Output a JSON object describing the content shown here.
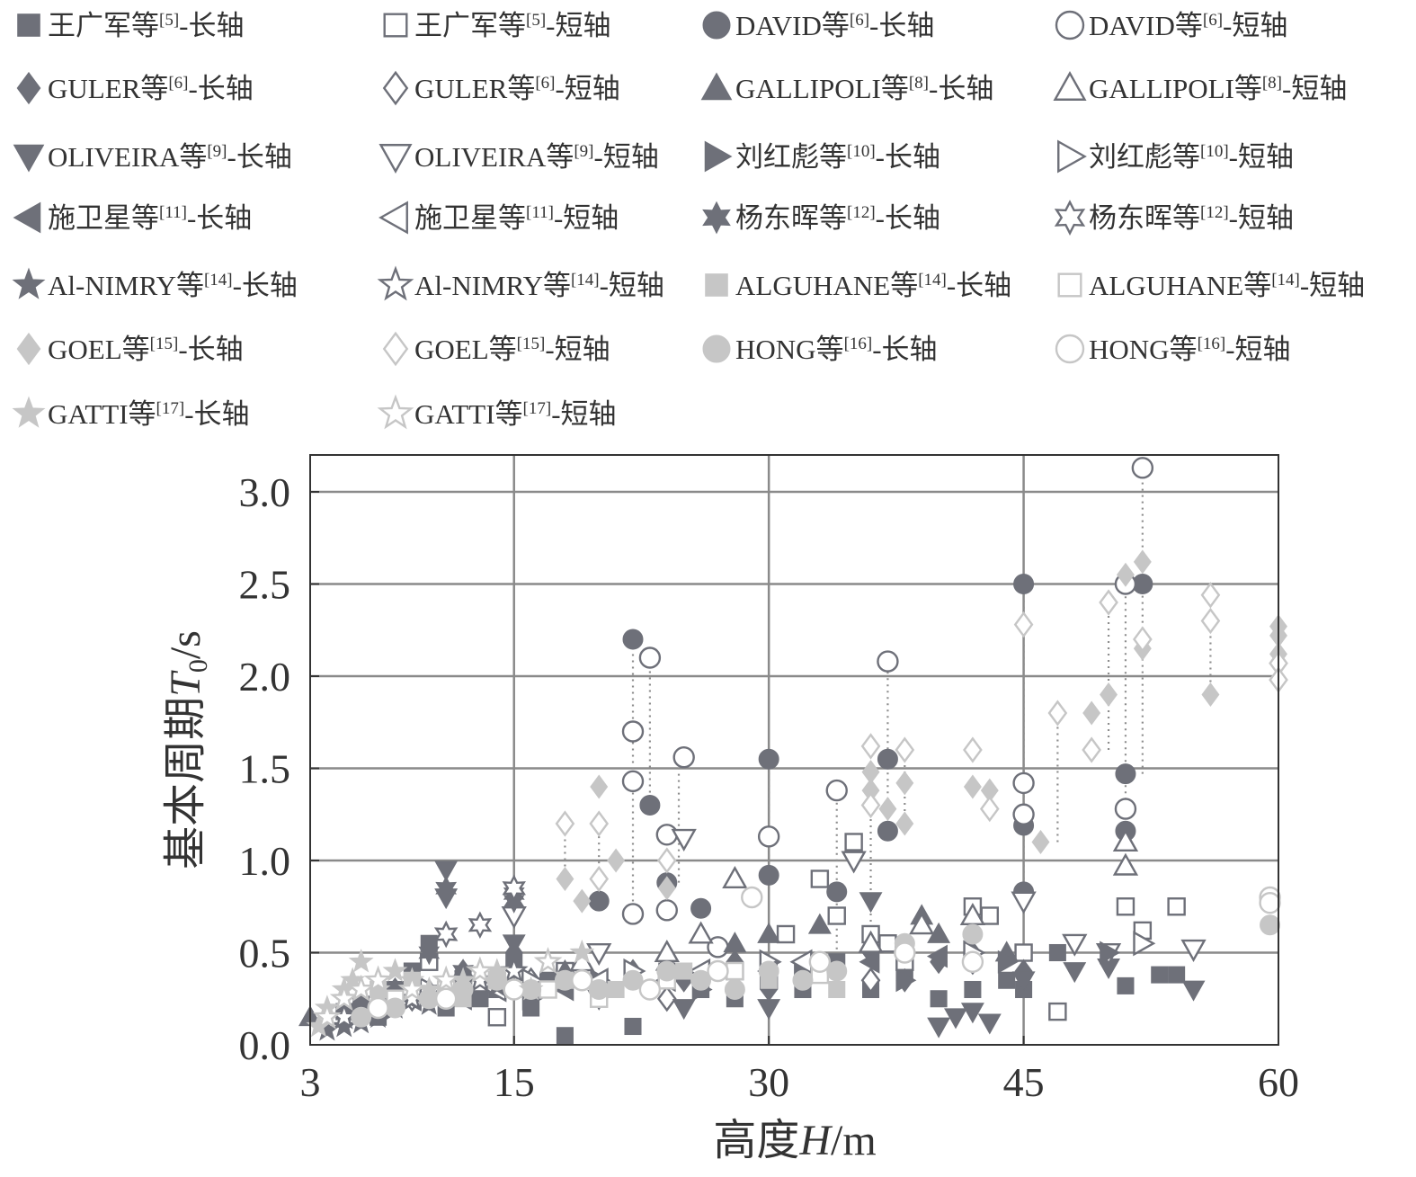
{
  "chart_data": {
    "type": "scatter",
    "xlabel": "高度H/m",
    "ylabel": "基本周期T0/s",
    "xlim": [
      3,
      60
    ],
    "ylim": [
      0,
      3.2
    ],
    "xticks": [
      "3",
      "15",
      "30",
      "45",
      "60"
    ],
    "xtick_values": [
      3,
      15,
      30,
      45,
      60
    ],
    "yticks": [
      "0.0",
      "0.5",
      "1.0",
      "1.5",
      "2.0",
      "2.5",
      "3.0"
    ],
    "ytick_values": [
      0,
      0.5,
      1.0,
      1.5,
      2.0,
      2.5,
      3.0
    ],
    "grid": true,
    "legend_position": "top",
    "colors": {
      "dark": "#6e7079",
      "light": "#c6c6c6",
      "axis": "#333333",
      "grid": "#8a8a8a"
    },
    "series": [
      {
        "name": "王广军等[5]-长轴",
        "marker": "square",
        "fill": true,
        "shade": "dark",
        "x": [
          5,
          6,
          7,
          8,
          9,
          10,
          11,
          12,
          13,
          14,
          15,
          16,
          17,
          18,
          20,
          22,
          24,
          26,
          28,
          30,
          32,
          34,
          36,
          38,
          40,
          42,
          44,
          45,
          47,
          51,
          53,
          54
        ],
        "y": [
          0.18,
          0.22,
          0.15,
          0.3,
          0.4,
          0.55,
          0.2,
          0.35,
          0.25,
          0.3,
          0.45,
          0.2,
          0.35,
          0.05,
          0.3,
          0.1,
          0.4,
          0.3,
          0.25,
          0.35,
          0.3,
          0.45,
          0.3,
          0.4,
          0.25,
          0.3,
          0.35,
          0.3,
          0.5,
          0.32,
          0.38,
          0.38
        ]
      },
      {
        "name": "王广军等[5]-短轴",
        "marker": "square",
        "fill": false,
        "shade": "dark",
        "x": [
          10,
          12,
          14,
          18,
          20,
          24,
          28,
          30,
          31,
          33,
          34,
          35,
          36,
          37,
          38,
          42,
          43,
          45,
          47,
          51,
          52,
          54
        ],
        "y": [
          0.45,
          0.3,
          0.15,
          0.4,
          0.3,
          0.35,
          0.4,
          0.35,
          0.6,
          0.9,
          0.7,
          1.1,
          0.6,
          0.55,
          0.45,
          0.75,
          0.7,
          0.5,
          0.18,
          0.75,
          0.62,
          0.75
        ]
      },
      {
        "name": "DAVID等[6]-长轴",
        "marker": "circle",
        "fill": true,
        "shade": "dark",
        "x": [
          20,
          22,
          23,
          24,
          26,
          30,
          30,
          34,
          37,
          37,
          45,
          45,
          45,
          51,
          51,
          52
        ],
        "y": [
          0.78,
          2.2,
          1.3,
          0.88,
          0.74,
          1.55,
          0.92,
          0.83,
          1.55,
          1.16,
          2.5,
          1.19,
          0.83,
          1.16,
          1.47,
          2.5
        ]
      },
      {
        "name": "DAVID等[6]-短轴",
        "marker": "circle",
        "fill": false,
        "shade": "dark",
        "x": [
          22,
          22,
          22,
          23,
          24,
          24,
          25,
          27,
          30,
          34,
          37,
          45,
          45,
          51,
          51,
          52
        ],
        "y": [
          1.7,
          1.43,
          0.71,
          2.1,
          1.14,
          0.73,
          1.56,
          0.53,
          1.13,
          1.38,
          2.08,
          1.42,
          1.25,
          1.28,
          2.5,
          3.13
        ]
      },
      {
        "name": "GULER等[6]-长轴",
        "marker": "diamond",
        "fill": true,
        "shade": "dark",
        "x": [
          8,
          10,
          12,
          15,
          18,
          20,
          22,
          25,
          28,
          30,
          34,
          36,
          38,
          40,
          42,
          45
        ],
        "y": [
          0.3,
          0.25,
          0.4,
          0.5,
          0.35,
          0.3,
          0.4,
          0.35,
          0.45,
          0.3,
          0.4,
          0.5,
          0.35,
          0.45,
          0.5,
          0.4
        ]
      },
      {
        "name": "GULER等[6]-短轴",
        "marker": "diamond",
        "fill": false,
        "shade": "dark",
        "x": [
          9,
          12,
          16,
          20,
          24,
          30,
          36,
          42
        ],
        "y": [
          0.25,
          0.3,
          0.35,
          0.3,
          0.25,
          0.4,
          0.35,
          0.45
        ]
      },
      {
        "name": "GALLIPOLI等[8]-长轴",
        "marker": "triangle-up",
        "fill": true,
        "shade": "dark",
        "x": [
          3,
          6,
          10,
          14,
          18,
          24,
          28,
          30,
          33,
          36,
          39,
          40,
          44
        ],
        "y": [
          0.15,
          0.25,
          0.3,
          0.35,
          0.4,
          0.45,
          0.55,
          0.6,
          0.65,
          0.55,
          0.7,
          0.6,
          0.5
        ]
      },
      {
        "name": "GALLIPOLI等[8]-短轴",
        "marker": "triangle-up",
        "fill": false,
        "shade": "dark",
        "x": [
          19,
          24,
          26,
          28,
          36,
          39,
          42,
          51,
          51
        ],
        "y": [
          0.45,
          0.5,
          0.6,
          0.9,
          0.55,
          0.65,
          0.7,
          1.1,
          0.97
        ]
      },
      {
        "name": "OLIVEIRA等[9]-长轴",
        "marker": "triangle-down",
        "fill": true,
        "shade": "dark",
        "x": [
          11,
          11,
          15,
          20,
          25,
          30,
          36,
          40,
          41,
          42,
          43,
          45,
          48,
          50,
          55
        ],
        "y": [
          0.95,
          0.8,
          0.55,
          0.25,
          0.2,
          0.2,
          0.78,
          0.1,
          0.15,
          0.18,
          0.12,
          0.35,
          0.4,
          0.42,
          0.3
        ]
      },
      {
        "name": "OLIVEIRA等[9]-短轴",
        "marker": "triangle-down",
        "fill": false,
        "shade": "dark",
        "x": [
          15,
          20,
          25,
          35,
          45,
          48,
          50,
          55
        ],
        "y": [
          0.7,
          0.5,
          1.12,
          1.0,
          0.78,
          0.55,
          0.5,
          0.52
        ]
      },
      {
        "name": "刘红彪等[10]-长轴",
        "marker": "triangle-right",
        "fill": true,
        "shade": "dark",
        "x": [
          8,
          12,
          16,
          20,
          26,
          32,
          38,
          44,
          50
        ],
        "y": [
          0.2,
          0.3,
          0.25,
          0.35,
          0.3,
          0.4,
          0.35,
          0.45,
          0.5
        ]
      },
      {
        "name": "刘红彪等[10]-短轴",
        "marker": "triangle-right",
        "fill": false,
        "shade": "dark",
        "x": [
          10,
          16,
          22,
          30,
          42,
          52
        ],
        "y": [
          0.3,
          0.35,
          0.4,
          0.45,
          0.5,
          0.55
        ]
      },
      {
        "name": "施卫星等[11]-长轴",
        "marker": "triangle-left",
        "fill": true,
        "shade": "dark",
        "x": [
          7,
          12,
          18,
          24,
          30,
          36,
          40
        ],
        "y": [
          0.2,
          0.25,
          0.3,
          0.35,
          0.4,
          0.45,
          0.48
        ]
      },
      {
        "name": "施卫星等[11]-短轴",
        "marker": "triangle-left",
        "fill": false,
        "shade": "dark",
        "x": [
          9,
          14,
          20,
          26,
          32
        ],
        "y": [
          0.25,
          0.3,
          0.35,
          0.4,
          0.45
        ]
      },
      {
        "name": "杨东晖等[12]-长轴",
        "marker": "star6",
        "fill": true,
        "shade": "dark",
        "x": [
          11,
          15,
          15,
          10,
          12
        ],
        "y": [
          0.85,
          0.82,
          0.78,
          0.5,
          0.4
        ]
      },
      {
        "name": "杨东晖等[12]-短轴",
        "marker": "star6",
        "fill": false,
        "shade": "dark",
        "x": [
          11,
          13,
          15
        ],
        "y": [
          0.6,
          0.65,
          0.85
        ]
      },
      {
        "name": "Al-NIMRY等[14]-长轴",
        "marker": "star5",
        "fill": true,
        "shade": "dark",
        "x": [
          4,
          5,
          6,
          7,
          8,
          9,
          10,
          11,
          12,
          13,
          14,
          15
        ],
        "y": [
          0.08,
          0.1,
          0.12,
          0.15,
          0.2,
          0.25,
          0.22,
          0.3,
          0.28,
          0.35,
          0.32,
          0.4
        ]
      },
      {
        "name": "Al-NIMRY等[14]-短轴",
        "marker": "star5",
        "fill": false,
        "shade": "dark",
        "x": [
          5,
          7,
          9,
          11,
          13,
          15
        ],
        "y": [
          0.15,
          0.2,
          0.25,
          0.3,
          0.35,
          0.4
        ]
      },
      {
        "name": "ALGUHANE等[14]-长轴",
        "marker": "square",
        "fill": true,
        "shade": "light",
        "x": [
          7,
          9,
          12,
          15,
          18,
          21,
          25,
          30,
          34
        ],
        "y": [
          0.3,
          0.35,
          0.25,
          0.3,
          0.35,
          0.3,
          0.4,
          0.35,
          0.3
        ]
      },
      {
        "name": "ALGUHANE等[14]-短轴",
        "marker": "square",
        "fill": false,
        "shade": "light",
        "x": [
          8,
          11,
          14,
          17,
          20,
          24,
          28,
          33
        ],
        "y": [
          0.25,
          0.3,
          0.35,
          0.3,
          0.25,
          0.35,
          0.4,
          0.38
        ]
      },
      {
        "name": "GOEL等[15]-长轴",
        "marker": "diamond",
        "fill": true,
        "shade": "light",
        "x": [
          18,
          19,
          20,
          21,
          24,
          36,
          36,
          37,
          38,
          38,
          42,
          43,
          46,
          49,
          50,
          51,
          52,
          52,
          56,
          60,
          60,
          60
        ],
        "y": [
          0.9,
          0.78,
          1.4,
          1.0,
          0.85,
          1.48,
          1.38,
          1.28,
          1.42,
          1.2,
          1.4,
          1.38,
          1.1,
          1.8,
          1.9,
          2.55,
          2.62,
          2.15,
          1.9,
          2.27,
          2.22,
          2.12
        ]
      },
      {
        "name": "GOEL等[15]-短轴",
        "marker": "diamond",
        "fill": false,
        "shade": "light",
        "x": [
          18,
          20,
          20,
          24,
          36,
          36,
          38,
          42,
          43,
          45,
          47,
          49,
          50,
          52,
          56,
          56,
          60,
          60
        ],
        "y": [
          1.2,
          1.2,
          0.9,
          1.0,
          1.62,
          1.3,
          1.6,
          1.6,
          1.28,
          2.28,
          1.8,
          1.6,
          2.4,
          2.2,
          2.44,
          2.3,
          2.07,
          1.98
        ]
      },
      {
        "name": "HONG等[16]-长轴",
        "marker": "circle",
        "fill": true,
        "shade": "light",
        "x": [
          6,
          8,
          10,
          12,
          14,
          16,
          18,
          20,
          22,
          24,
          26,
          28,
          30,
          32,
          34,
          38,
          42,
          59.5
        ],
        "y": [
          0.15,
          0.2,
          0.25,
          0.3,
          0.35,
          0.3,
          0.35,
          0.3,
          0.35,
          0.4,
          0.35,
          0.3,
          0.4,
          0.35,
          0.4,
          0.55,
          0.6,
          0.65
        ]
      },
      {
        "name": "HONG等[16]-短轴",
        "marker": "circle",
        "fill": false,
        "shade": "light",
        "x": [
          7,
          11,
          15,
          19,
          23,
          27,
          29,
          33,
          38,
          42,
          59.5,
          59.5
        ],
        "y": [
          0.2,
          0.25,
          0.3,
          0.35,
          0.3,
          0.4,
          0.8,
          0.45,
          0.5,
          0.45,
          0.8,
          0.77
        ]
      },
      {
        "name": "GATTI等[17]-长轴",
        "marker": "star5",
        "fill": true,
        "shade": "light",
        "x": [
          3.5,
          4,
          5,
          5.5,
          6,
          7,
          8,
          9,
          10,
          12,
          14,
          16,
          19
        ],
        "y": [
          0.1,
          0.2,
          0.3,
          0.35,
          0.45,
          0.3,
          0.4,
          0.35,
          0.3,
          0.35,
          0.4,
          0.3,
          0.5
        ]
      },
      {
        "name": "GATTI等[17]-短轴",
        "marker": "star5",
        "fill": false,
        "shade": "light",
        "x": [
          4,
          5,
          6,
          7,
          9,
          11,
          13,
          17
        ],
        "y": [
          0.15,
          0.25,
          0.3,
          0.35,
          0.3,
          0.35,
          0.4,
          0.45
        ]
      }
    ],
    "connectors": [
      {
        "x": 22,
        "y1": 0.71,
        "y2": 2.2
      },
      {
        "x": 23,
        "y1": 1.3,
        "y2": 2.1
      },
      {
        "x": 24.7,
        "y1": 0.88,
        "y2": 1.56
      },
      {
        "x": 30,
        "y1": 0.92,
        "y2": 1.55
      },
      {
        "x": 34,
        "y1": 0.45,
        "y2": 1.38
      },
      {
        "x": 37,
        "y1": 1.16,
        "y2": 2.08
      },
      {
        "x": 45,
        "y1": 0.83,
        "y2": 2.5
      },
      {
        "x": 51,
        "y1": 1.16,
        "y2": 2.5
      },
      {
        "x": 52,
        "y1": 1.47,
        "y2": 3.13
      },
      {
        "x": 20,
        "y1": 0.78,
        "y2": 1.2
      },
      {
        "x": 18,
        "y1": 0.9,
        "y2": 1.2
      },
      {
        "x": 47,
        "y1": 1.1,
        "y2": 1.8
      },
      {
        "x": 50,
        "y1": 1.6,
        "y2": 2.4
      },
      {
        "x": 56,
        "y1": 1.9,
        "y2": 2.44
      },
      {
        "x": 60,
        "y1": 1.98,
        "y2": 2.27
      },
      {
        "x": 59.5,
        "y1": 0.65,
        "y2": 0.8
      },
      {
        "x": 36,
        "y1": 0.6,
        "y2": 1.62
      },
      {
        "x": 38,
        "y1": 1.2,
        "y2": 1.6
      }
    ]
  }
}
